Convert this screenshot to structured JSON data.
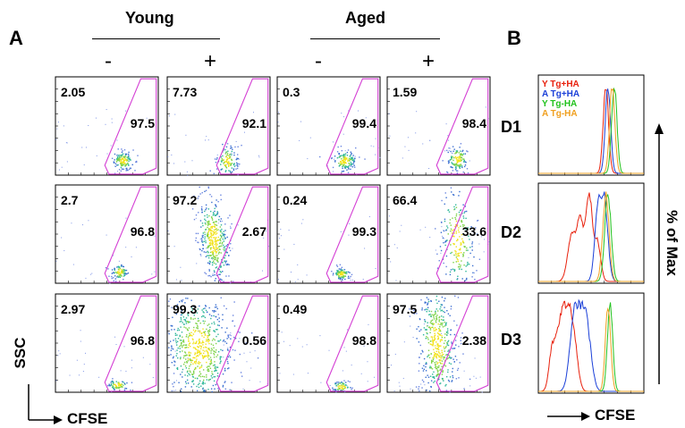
{
  "panel_a": {
    "letter": "A",
    "groups": [
      {
        "label": "Young",
        "signs": [
          "-",
          "+"
        ]
      },
      {
        "label": "Aged",
        "signs": [
          "-",
          "+"
        ]
      }
    ],
    "rows": [
      [
        {
          "low": "2.05",
          "high": "97.5"
        },
        {
          "low": "7.73",
          "high": "92.1"
        },
        {
          "low": "0.3",
          "high": "99.4"
        },
        {
          "low": "1.59",
          "high": "98.4"
        }
      ],
      [
        {
          "low": "2.7",
          "high": "96.8"
        },
        {
          "low": "97.2",
          "high": "2.67"
        },
        {
          "low": "0.24",
          "high": "99.3"
        },
        {
          "low": "66.4",
          "high": "33.6"
        }
      ],
      [
        {
          "low": "2.97",
          "high": "96.8"
        },
        {
          "low": "99.3",
          "high": "0.56"
        },
        {
          "low": "0.49",
          "high": "98.8"
        },
        {
          "low": "97.5",
          "high": "2.38"
        }
      ]
    ],
    "y_axis": "SSC",
    "x_axis": "CFSE"
  },
  "panel_b": {
    "letter": "B",
    "row_labels": [
      "D1",
      "D2",
      "D3"
    ],
    "legend": [
      {
        "label": "Y Tg+HA",
        "color": "#e8200c"
      },
      {
        "label": "A Tg+HA",
        "color": "#1a3fd8"
      },
      {
        "label": "Y Tg-HA",
        "color": "#22c21e"
      },
      {
        "label": "A Tg-HA",
        "color": "#f0a020"
      }
    ],
    "y_axis": "% of Max",
    "x_axis": "CFSE"
  }
}
